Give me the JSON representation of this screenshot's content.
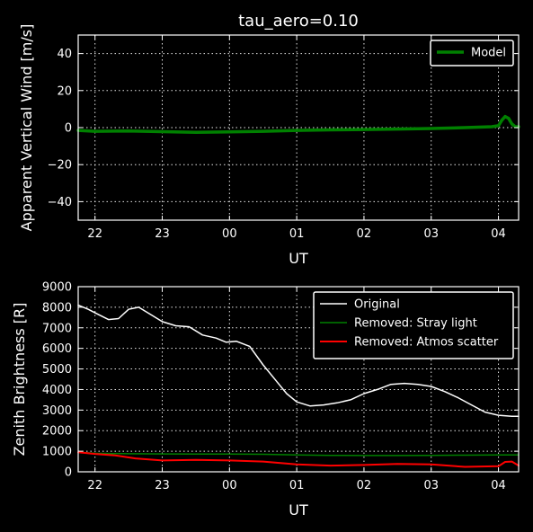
{
  "chart_data": [
    {
      "type": "line",
      "title": "tau_aero=0.10",
      "xlabel": "UT",
      "ylabel": "Apparent Vertical Wind [m/s]",
      "xlim": [
        21.75,
        28.3
      ],
      "ylim": [
        -50,
        50
      ],
      "xticks": [
        22,
        23,
        24,
        25,
        26,
        27,
        28
      ],
      "xticklabels": [
        "22",
        "23",
        "00",
        "01",
        "02",
        "03",
        "04"
      ],
      "yticks": [
        -40,
        -20,
        0,
        20,
        40
      ],
      "yticklabels": [
        "−40",
        "−20",
        "0",
        "20",
        "40"
      ],
      "grid": true,
      "legend_position": "top-right",
      "series": [
        {
          "name": "Model",
          "color": "#008000",
          "x": [
            21.75,
            22.0,
            22.5,
            23.0,
            23.5,
            24.0,
            24.5,
            25.0,
            25.5,
            26.0,
            26.5,
            27.0,
            27.5,
            27.9,
            28.0,
            28.05,
            28.1,
            28.15,
            28.2,
            28.25,
            28.3
          ],
          "y": [
            -1.5,
            -2.0,
            -1.8,
            -2.2,
            -2.5,
            -2.3,
            -2.0,
            -1.5,
            -1.2,
            -1.0,
            -0.8,
            -0.5,
            0.0,
            0.5,
            1.0,
            4.0,
            6.0,
            5.0,
            2.0,
            0.5,
            0.5
          ]
        }
      ]
    },
    {
      "type": "line",
      "title": "",
      "xlabel": "UT",
      "ylabel": "Zenith Brightness [R]",
      "xlim": [
        21.75,
        28.3
      ],
      "ylim": [
        0,
        9000
      ],
      "xticks": [
        22,
        23,
        24,
        25,
        26,
        27,
        28
      ],
      "xticklabels": [
        "22",
        "23",
        "00",
        "01",
        "02",
        "03",
        "04"
      ],
      "yticks": [
        0,
        1000,
        2000,
        3000,
        4000,
        5000,
        6000,
        7000,
        8000,
        9000
      ],
      "yticklabels": [
        "0",
        "1000",
        "2000",
        "3000",
        "4000",
        "5000",
        "6000",
        "7000",
        "8000",
        "9000"
      ],
      "grid": true,
      "legend_position": "top-right",
      "series": [
        {
          "name": "Original",
          "color": "#ffffff",
          "x": [
            21.75,
            21.9,
            22.05,
            22.2,
            22.35,
            22.5,
            22.65,
            22.85,
            23.0,
            23.2,
            23.4,
            23.6,
            23.8,
            23.95,
            24.1,
            24.3,
            24.5,
            24.7,
            24.85,
            25.0,
            25.2,
            25.4,
            25.6,
            25.8,
            26.0,
            26.2,
            26.4,
            26.6,
            26.8,
            27.0,
            27.2,
            27.4,
            27.6,
            27.8,
            28.0,
            28.2,
            28.3
          ],
          "y": [
            8100,
            7900,
            7650,
            7400,
            7450,
            7900,
            8000,
            7600,
            7300,
            7100,
            7050,
            6650,
            6500,
            6300,
            6350,
            6100,
            5200,
            4400,
            3800,
            3400,
            3200,
            3250,
            3350,
            3500,
            3800,
            4000,
            4250,
            4300,
            4250,
            4150,
            3900,
            3600,
            3250,
            2900,
            2750,
            2700,
            2700
          ]
        },
        {
          "name": "Removed: Stray light",
          "color": "#008000",
          "x": [
            21.75,
            22.0,
            22.5,
            23.0,
            23.5,
            24.0,
            24.5,
            25.0,
            25.5,
            26.0,
            26.5,
            27.0,
            27.5,
            28.0,
            28.3
          ],
          "y": [
            950,
            900,
            880,
            870,
            860,
            860,
            850,
            820,
            800,
            790,
            790,
            800,
            810,
            820,
            820
          ]
        },
        {
          "name": "Removed: Atmos scatter",
          "color": "#ff0000",
          "x": [
            21.75,
            22.0,
            22.3,
            22.6,
            23.0,
            23.5,
            24.0,
            24.5,
            25.0,
            25.5,
            26.0,
            26.5,
            27.0,
            27.5,
            28.0,
            28.1,
            28.2,
            28.3
          ],
          "y": [
            950,
            870,
            800,
            650,
            550,
            580,
            550,
            500,
            360,
            300,
            330,
            380,
            360,
            240,
            270,
            480,
            500,
            300
          ]
        }
      ]
    }
  ]
}
